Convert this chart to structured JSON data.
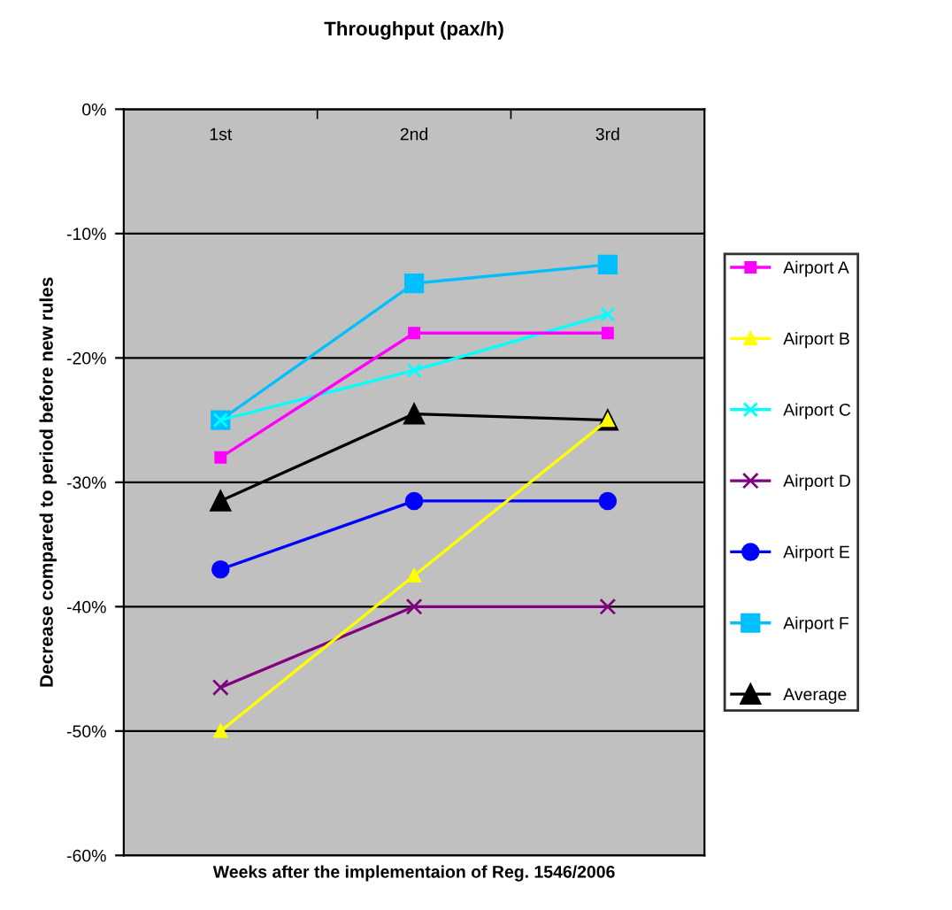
{
  "chart_data": {
    "type": "line",
    "title": "Throughput (pax/h)",
    "xlabel": "Weeks after the implementaion of Reg. 1546/2006",
    "ylabel": "Decrease compared to period before new rules",
    "categories": [
      "1st",
      "2nd",
      "3rd"
    ],
    "series": [
      {
        "name": "Airport A",
        "color": "#ff00ff",
        "marker": "square",
        "values": [
          -28,
          -18,
          -18
        ]
      },
      {
        "name": "Airport B",
        "color": "#ffff00",
        "marker": "triangle",
        "values": [
          -50,
          -37.5,
          -25
        ]
      },
      {
        "name": "Airport C",
        "color": "#00ffff",
        "marker": "cross",
        "values": [
          -25,
          -21,
          -16.5
        ]
      },
      {
        "name": "Airport D",
        "color": "#800080",
        "marker": "cross",
        "values": [
          -46.5,
          -40,
          -40
        ]
      },
      {
        "name": "Airport E",
        "color": "#0000ff",
        "marker": "circle",
        "values": [
          -37,
          -31.5,
          -31.5
        ]
      },
      {
        "name": "Airport F",
        "color": "#00bfff",
        "marker": "square",
        "values": [
          -25,
          -14,
          -12.5
        ]
      },
      {
        "name": "Average",
        "color": "#000000",
        "marker": "triangle",
        "values": [
          -31.5,
          -24.5,
          -25
        ]
      }
    ],
    "ylim": [
      -60,
      0
    ],
    "yticks": [
      {
        "value": -60,
        "label": "-60%"
      },
      {
        "value": -50,
        "label": "-50%"
      },
      {
        "value": -40,
        "label": "-40%"
      },
      {
        "value": -30,
        "label": "-30%"
      },
      {
        "value": -20,
        "label": "-20%"
      },
      {
        "value": -10,
        "label": "-10%"
      },
      {
        "value": 0,
        "label": "0%"
      }
    ],
    "grid": "y",
    "legend": "right",
    "line_style": "solid"
  }
}
